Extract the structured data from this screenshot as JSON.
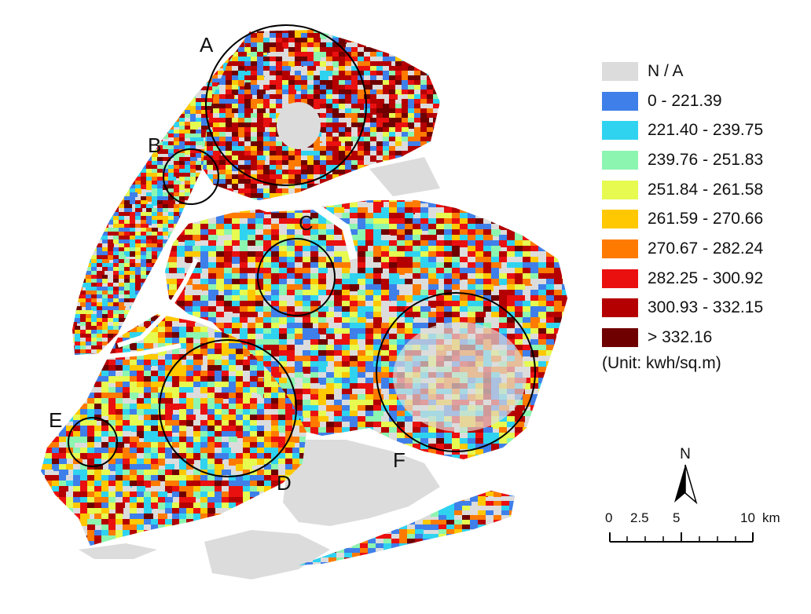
{
  "legend": {
    "entries": [
      {
        "label": "N / A",
        "color": "#dcdcdc"
      },
      {
        "label": "0 - 221.39",
        "color": "#3f7fe9"
      },
      {
        "label": "221.40 - 239.75",
        "color": "#2fd3f0"
      },
      {
        "label": "239.76 - 251.83",
        "color": "#8cf5b0"
      },
      {
        "label": "251.84 - 261.58",
        "color": "#e6fa50"
      },
      {
        "label": "261.59 - 270.66",
        "color": "#ffc800"
      },
      {
        "label": "270.67 - 282.24",
        "color": "#ff7a00"
      },
      {
        "label": "282.25 - 300.92",
        "color": "#ea1010"
      },
      {
        "label": "300.93 - 332.15",
        "color": "#b40000"
      },
      {
        "label": "> 332.16",
        "color": "#6e0000"
      }
    ],
    "unit": "(Unit: kwh/sq.m)"
  },
  "circles": [
    {
      "label": "A"
    },
    {
      "label": "B"
    },
    {
      "label": "C"
    },
    {
      "label": "D"
    },
    {
      "label": "E"
    },
    {
      "label": "F"
    }
  ],
  "north_arrow": {
    "letter": "N"
  },
  "scale_bar": {
    "ticks": [
      "0",
      "2.5",
      "5",
      "10"
    ],
    "unit": "km"
  }
}
